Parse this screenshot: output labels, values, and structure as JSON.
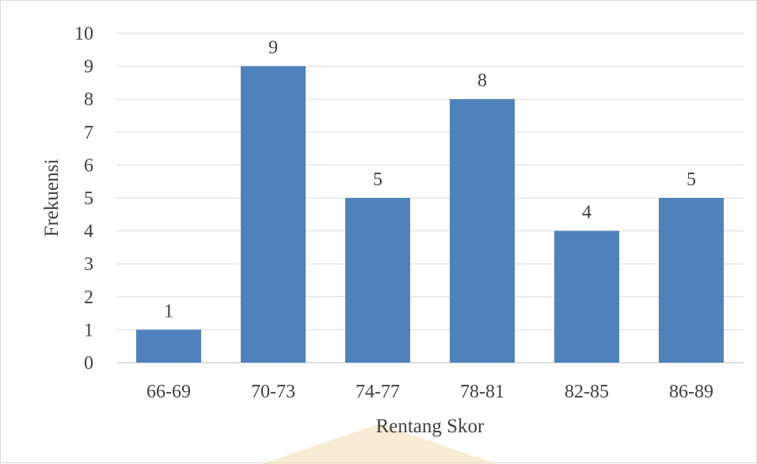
{
  "chart_data": {
    "type": "bar",
    "categories": [
      "66-69",
      "70-73",
      "74-77",
      "78-81",
      "82-85",
      "86-89"
    ],
    "values": [
      1,
      9,
      5,
      8,
      4,
      5
    ],
    "data_labels": [
      "1",
      "9",
      "5",
      "8",
      "4",
      "5"
    ],
    "y_ticks": [
      "0",
      "1",
      "2",
      "3",
      "4",
      "5",
      "6",
      "7",
      "8",
      "9",
      "10"
    ],
    "title": "",
    "xlabel": "Rentang Skor",
    "ylabel": "Frekuensi",
    "ylim": [
      0,
      10
    ],
    "grid": true,
    "legend": "none",
    "colors": {
      "bar": "#4f81bd",
      "grid": "#d9d9d9",
      "text": "#404040",
      "watermark": "#f2dcb0"
    }
  }
}
